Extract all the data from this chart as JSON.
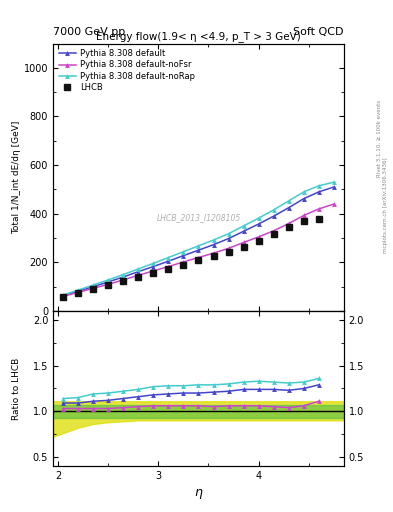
{
  "title_left": "7000 GeV pp",
  "title_right": "Soft QCD",
  "plot_title": "Energy flow(1.9< η <4.9, p_T > 3 GeV)",
  "watermark": "LHCB_2013_I1208105",
  "right_label": "Rivet 3.1.10, ≥ 100k events",
  "right_label2": "mcplots.cern.ch [arXiv:1306.3436]",
  "xlabel": "η",
  "ylabel": "Total 1/N_int dE/dη [GeV]",
  "ylabel_ratio": "Ratio to LHCB",
  "eta_sim": [
    2.05,
    2.2,
    2.35,
    2.5,
    2.65,
    2.8,
    2.95,
    3.1,
    3.25,
    3.4,
    3.55,
    3.7,
    3.85,
    4.0,
    4.15,
    4.3,
    4.45,
    4.6,
    4.75
  ],
  "eta_lhcb": [
    2.05,
    2.2,
    2.35,
    2.5,
    2.65,
    2.8,
    2.95,
    3.1,
    3.25,
    3.4,
    3.55,
    3.7,
    3.85,
    4.0,
    4.15,
    4.3,
    4.45,
    4.6
  ],
  "lhcb_y": [
    58,
    75,
    90,
    107,
    123,
    140,
    155,
    172,
    190,
    208,
    226,
    244,
    265,
    288,
    315,
    345,
    370,
    380
  ],
  "lhcb_yerr": [
    4,
    5,
    6,
    7,
    8,
    9,
    10,
    11,
    12,
    13,
    14,
    15,
    16,
    18,
    20,
    22,
    25,
    28
  ],
  "py_default_y": [
    63,
    82,
    100,
    120,
    140,
    162,
    183,
    205,
    228,
    250,
    273,
    298,
    328,
    358,
    390,
    425,
    462,
    490,
    510
  ],
  "py_noFsr_y": [
    60,
    77,
    93,
    110,
    128,
    147,
    165,
    183,
    202,
    220,
    238,
    258,
    282,
    305,
    330,
    360,
    393,
    420,
    440
  ],
  "py_noRap_y": [
    66,
    86,
    107,
    128,
    150,
    173,
    196,
    220,
    244,
    268,
    292,
    318,
    350,
    382,
    416,
    453,
    490,
    515,
    530
  ],
  "color_default": "#4444cc",
  "color_noFsr": "#cc44cc",
  "color_noRap": "#44cccc",
  "color_lhcb": "#111111",
  "ylim_main": [
    0,
    1100
  ],
  "ylim_ratio": [
    0.4,
    2.1
  ],
  "xlim": [
    1.95,
    4.85
  ],
  "band_green_lo": 0.93,
  "band_green_hi": 1.07,
  "ratio_default": [
    1.09,
    1.09,
    1.11,
    1.12,
    1.14,
    1.16,
    1.18,
    1.19,
    1.2,
    1.2,
    1.21,
    1.22,
    1.24,
    1.24,
    1.24,
    1.23,
    1.25,
    1.29
  ],
  "ratio_noFsr": [
    1.03,
    1.03,
    1.03,
    1.03,
    1.04,
    1.05,
    1.06,
    1.06,
    1.06,
    1.06,
    1.05,
    1.06,
    1.06,
    1.06,
    1.05,
    1.04,
    1.06,
    1.11
  ],
  "ratio_noRap": [
    1.14,
    1.15,
    1.19,
    1.2,
    1.22,
    1.24,
    1.27,
    1.28,
    1.28,
    1.29,
    1.29,
    1.3,
    1.32,
    1.33,
    1.32,
    1.31,
    1.32,
    1.36
  ],
  "yellow_x": [
    1.95,
    2.05,
    2.2,
    2.35,
    2.5,
    2.65,
    2.8,
    2.95,
    3.1,
    3.25,
    3.4,
    3.55,
    3.7,
    3.85,
    4.0,
    4.15,
    4.3,
    4.45,
    4.6,
    4.85
  ],
  "yellow_lo": [
    0.72,
    0.76,
    0.82,
    0.86,
    0.88,
    0.89,
    0.9,
    0.9,
    0.9,
    0.9,
    0.9,
    0.9,
    0.9,
    0.9,
    0.9,
    0.9,
    0.9,
    0.9,
    0.9,
    0.9
  ],
  "yellow_hi": [
    1.11,
    1.11,
    1.11,
    1.11,
    1.11,
    1.11,
    1.11,
    1.11,
    1.11,
    1.11,
    1.11,
    1.11,
    1.11,
    1.11,
    1.11,
    1.11,
    1.11,
    1.11,
    1.11,
    1.11
  ]
}
